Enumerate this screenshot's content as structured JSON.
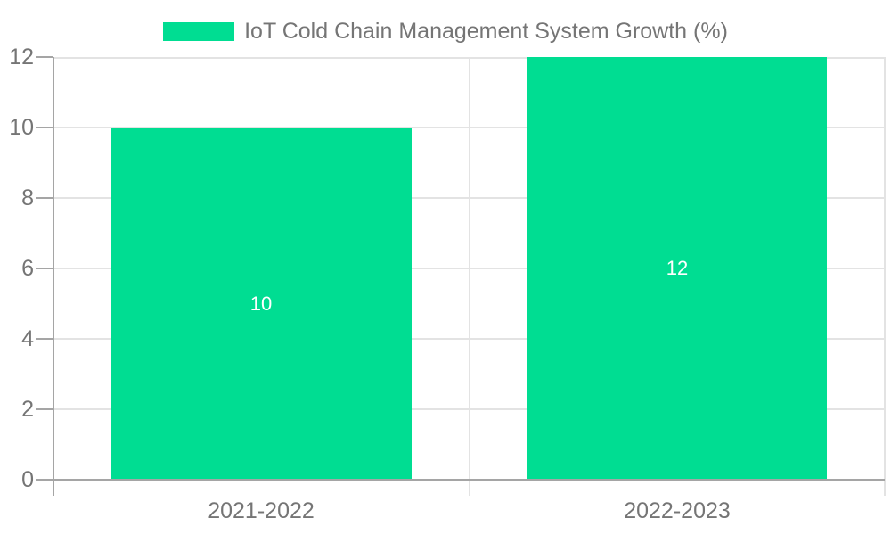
{
  "legend": {
    "swatch_color": "#00dd92"
  },
  "chart_data": {
    "type": "bar",
    "title": "IoT Cold Chain Management System Growth (%)",
    "categories": [
      "2021-2022",
      "2022-2023"
    ],
    "values": [
      10,
      12
    ],
    "bar_labels": [
      "10",
      "12"
    ],
    "xlabel": "",
    "ylabel": "",
    "ylim": [
      0,
      12
    ],
    "yticks": [
      0,
      2,
      4,
      6,
      8,
      10,
      12
    ],
    "grid": true,
    "legend_position": "top-center",
    "bar_color": "#00dd92",
    "value_label_color": "#ffffff",
    "axis_text_color": "#757575",
    "gridline_color": "#e3e3e3",
    "axis_line_color": "#a5a5a5",
    "background_color": "#ffffff"
  }
}
